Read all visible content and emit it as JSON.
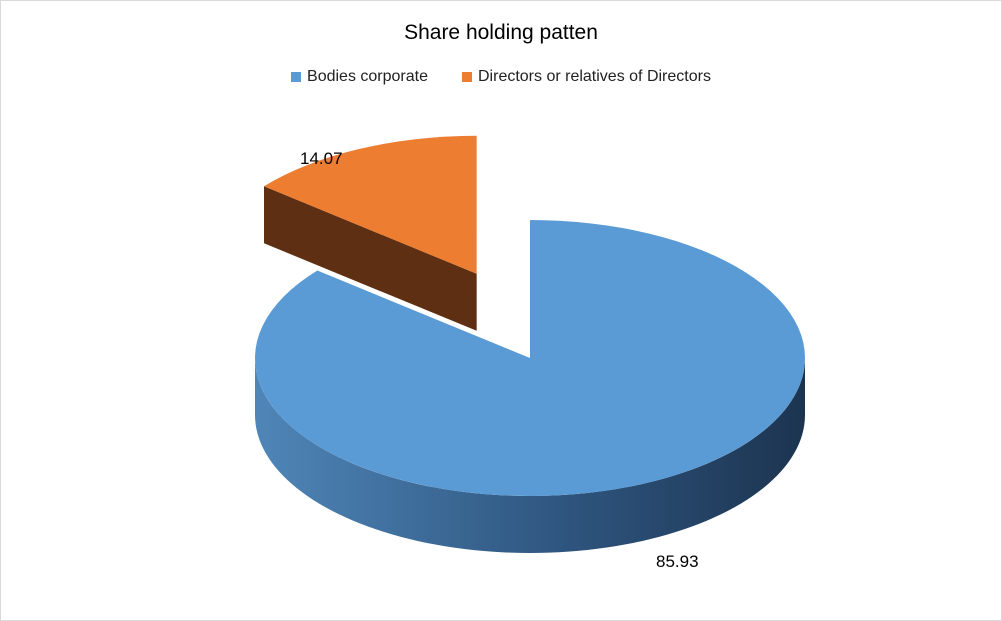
{
  "chart_data": {
    "type": "pie",
    "title": "Share holding patten",
    "slices": [
      {
        "label": "Bodies corporate",
        "value": 85.93,
        "color": "#5b9bd5",
        "side_color": "#2e5a85"
      },
      {
        "label": "Directors or relatives of Directors",
        "value": 14.07,
        "color": "#ed7d31",
        "side_color": "#5e2f12"
      }
    ],
    "legend_position": "top",
    "style": "3d-exploded"
  }
}
